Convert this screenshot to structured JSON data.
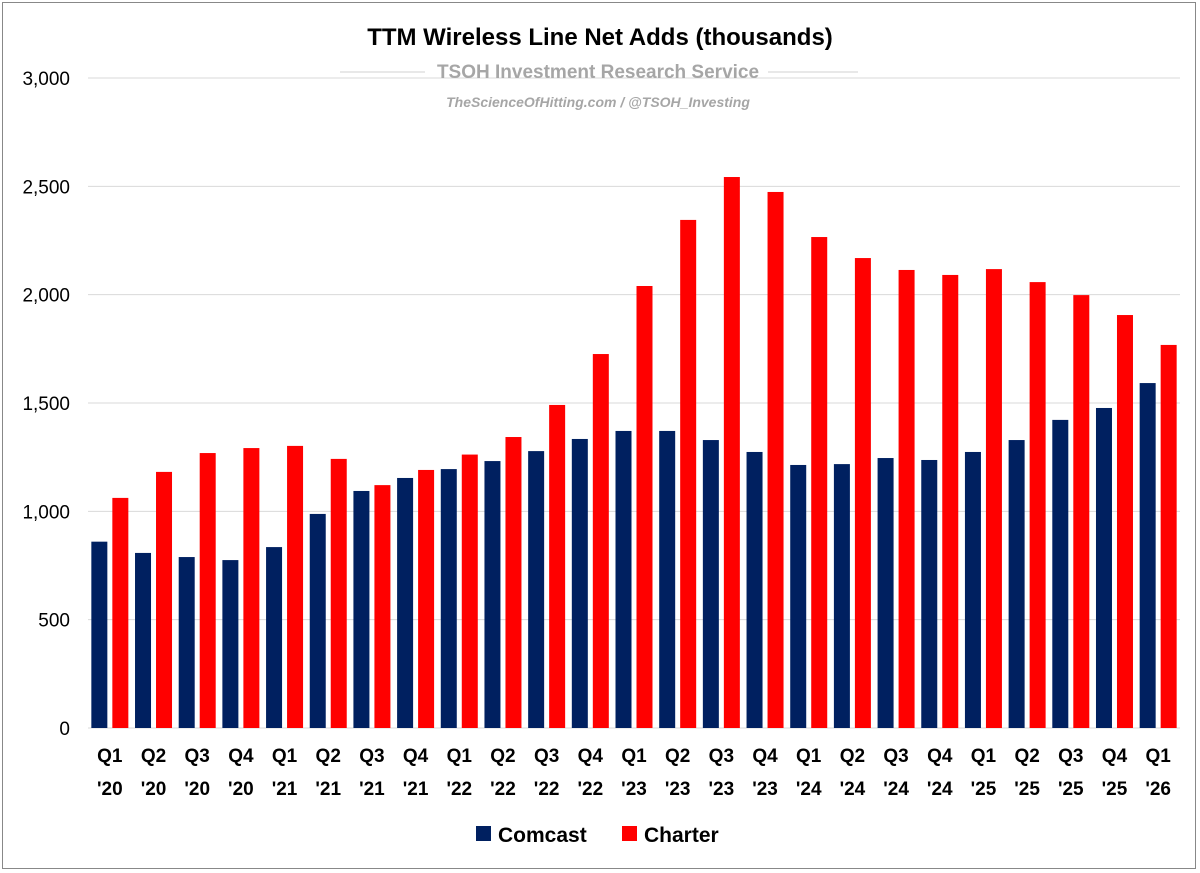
{
  "chart_data": {
    "type": "bar",
    "title": "TTM Wireless Line Net Adds (thousands)",
    "watermark": {
      "line1": "TSOH Investment Research Service",
      "line2": "TheScienceOfHitting.com / @TSOH_Investing"
    },
    "categories": [
      [
        "Q1",
        "'20"
      ],
      [
        "Q2",
        "'20"
      ],
      [
        "Q3",
        "'20"
      ],
      [
        "Q4",
        "'20"
      ],
      [
        "Q1",
        "'21"
      ],
      [
        "Q2",
        "'21"
      ],
      [
        "Q3",
        "'21"
      ],
      [
        "Q4",
        "'21"
      ],
      [
        "Q1",
        "'22"
      ],
      [
        "Q2",
        "'22"
      ],
      [
        "Q3",
        "'22"
      ],
      [
        "Q4",
        "'22"
      ],
      [
        "Q1",
        "'23"
      ],
      [
        "Q2",
        "'23"
      ],
      [
        "Q3",
        "'23"
      ],
      [
        "Q4",
        "'23"
      ],
      [
        "Q1",
        "'24"
      ],
      [
        "Q2",
        "'24"
      ],
      [
        "Q3",
        "'24"
      ],
      [
        "Q4",
        "'24"
      ],
      [
        "Q1",
        "'25"
      ],
      [
        "Q2",
        "'25"
      ],
      [
        "Q3",
        "'25"
      ],
      [
        "Q4",
        "'25"
      ],
      [
        "Q1",
        "'26"
      ]
    ],
    "series": [
      {
        "name": "Comcast",
        "color": "#002060",
        "values": [
          860,
          808,
          789,
          775,
          835,
          988,
          1094,
          1154,
          1195,
          1232,
          1278,
          1334,
          1371,
          1371,
          1329,
          1274,
          1214,
          1218,
          1246,
          1237,
          1274,
          1329,
          1422,
          1477,
          1592
        ]
      },
      {
        "name": "Charter",
        "color": "#ff0000",
        "values": [
          1062,
          1182,
          1269,
          1292,
          1302,
          1242,
          1121,
          1191,
          1262,
          1343,
          1491,
          1726,
          2040,
          2345,
          2543,
          2474,
          2266,
          2169,
          2114,
          2091,
          2118,
          2058,
          1998,
          1906,
          1768
        ]
      }
    ],
    "ylim": [
      0,
      3000
    ],
    "yticks": [
      "0",
      "500",
      "1,000",
      "1,500",
      "2,000",
      "2,500",
      "3,000"
    ],
    "ytick_values": [
      0,
      500,
      1000,
      1500,
      2000,
      2500,
      3000
    ],
    "grid": true,
    "legend": "bottom"
  }
}
